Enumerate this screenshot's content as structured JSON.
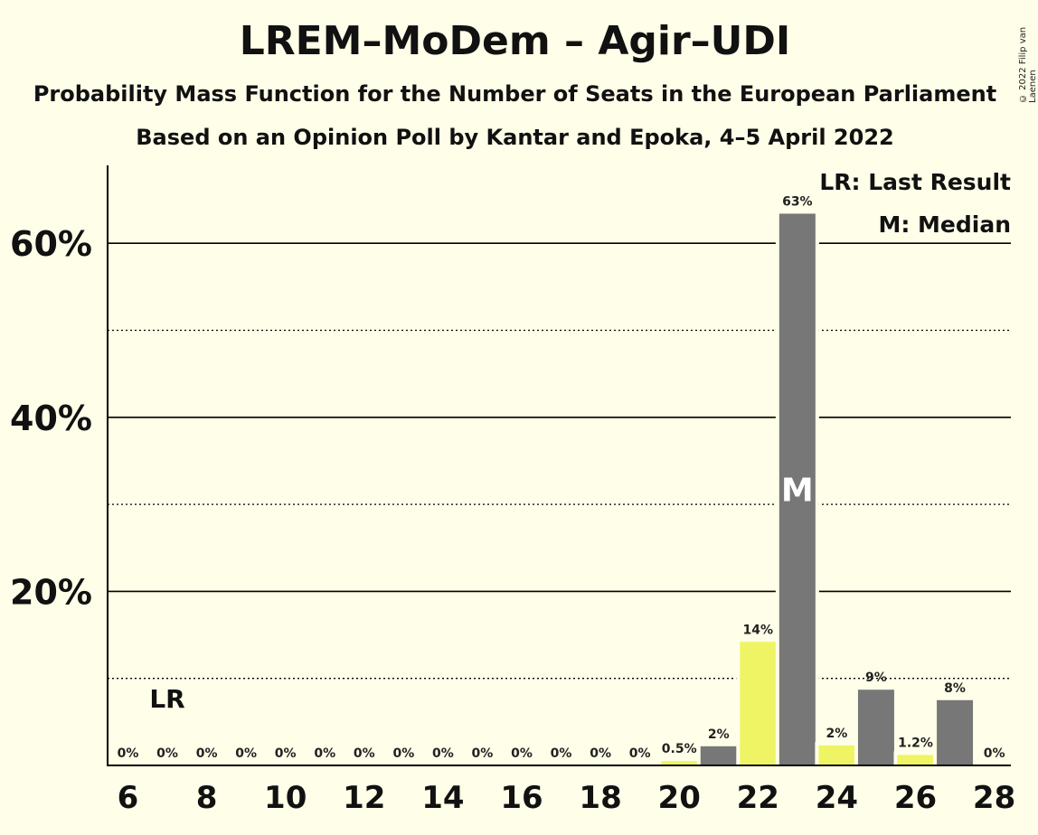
{
  "header": {
    "title": "LREM–MoDem – Agir–UDI",
    "subtitle1": "Probability Mass Function for the Number of Seats in the European Parliament",
    "subtitle2": "Based on an Opinion Poll by Kantar and Epoka, 4–5 April 2022",
    "copyright": "© 2022 Filip van Laenen"
  },
  "legend": {
    "last_result": "LR: Last Result",
    "median": "M: Median"
  },
  "colors": {
    "background": "#FFFEE8",
    "bar_gray": "#777777",
    "bar_yellow": "#EEF464",
    "axis": "#000000"
  },
  "chart_data": {
    "type": "bar",
    "title": "LREM–MoDem – Agir–UDI",
    "x": [
      6,
      7,
      8,
      9,
      10,
      11,
      12,
      13,
      14,
      15,
      16,
      17,
      18,
      19,
      20,
      21,
      22,
      23,
      24,
      25,
      26,
      27,
      28
    ],
    "values": [
      0,
      0,
      0,
      0,
      0,
      0,
      0,
      0,
      0,
      0,
      0,
      0,
      0,
      0,
      0.5,
      2.2,
      14.2,
      63.4,
      2.3,
      8.7,
      1.2,
      7.5,
      0
    ],
    "labels": [
      "0%",
      "0%",
      "0%",
      "0%",
      "0%",
      "0%",
      "0%",
      "0%",
      "0%",
      "0%",
      "0%",
      "0%",
      "0%",
      "0%",
      "0.5%",
      "2%",
      "14%",
      "63%",
      "2%",
      "9%",
      "1.2%",
      "8%",
      "0%"
    ],
    "bar_colors": [
      "gray",
      "yellow",
      "gray",
      "yellow",
      "gray",
      "yellow",
      "gray",
      "yellow",
      "gray",
      "yellow",
      "gray",
      "yellow",
      "gray",
      "yellow",
      "yellow",
      "gray",
      "yellow",
      "gray",
      "yellow",
      "gray",
      "yellow",
      "gray",
      "yellow"
    ],
    "x_ticks": [
      "6",
      "8",
      "10",
      "12",
      "14",
      "16",
      "18",
      "20",
      "22",
      "24",
      "26",
      "28"
    ],
    "y_ticks": [
      "20%",
      "40%",
      "60%"
    ],
    "y_tick_values": [
      20,
      40,
      60
    ],
    "y_minor_gridlines": [
      10,
      30,
      50
    ],
    "ylim": [
      0,
      69
    ],
    "last_result_seat": 7,
    "last_result_label": "LR",
    "median_seat": 23,
    "median_label": "M",
    "legend_position": "top-right",
    "grid": true
  }
}
